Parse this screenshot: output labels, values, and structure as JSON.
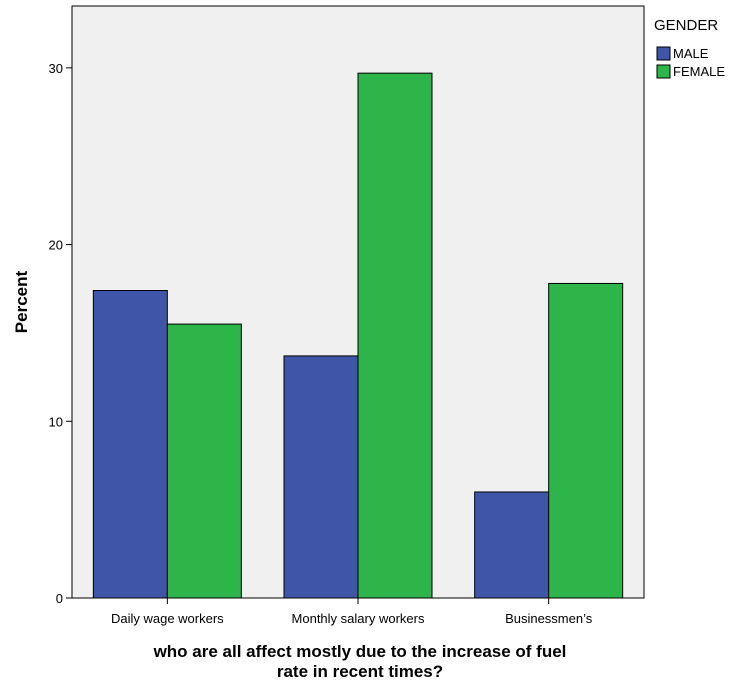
{
  "chart_data": {
    "type": "bar",
    "categories": [
      "Daily wage workers",
      "Monthly salary workers",
      "Businessmen’s"
    ],
    "series": [
      {
        "name": "MALE",
        "values": [
          17.4,
          13.7,
          6.0
        ],
        "color": "#3f56a8"
      },
      {
        "name": "FEMALE",
        "values": [
          15.5,
          29.7,
          17.8
        ],
        "color": "#2db54a"
      }
    ],
    "ylabel": "Percent",
    "xlabel_lines": [
      "who are all affect mostly due to the increase of fuel",
      "rate in recent times?"
    ],
    "ylim": [
      0,
      33.5
    ],
    "yticks": [
      0,
      10,
      20,
      30
    ],
    "legend_title": "GENDER",
    "legend_position": "top-right",
    "plot_background": "#f0f0f0",
    "grid": false
  }
}
